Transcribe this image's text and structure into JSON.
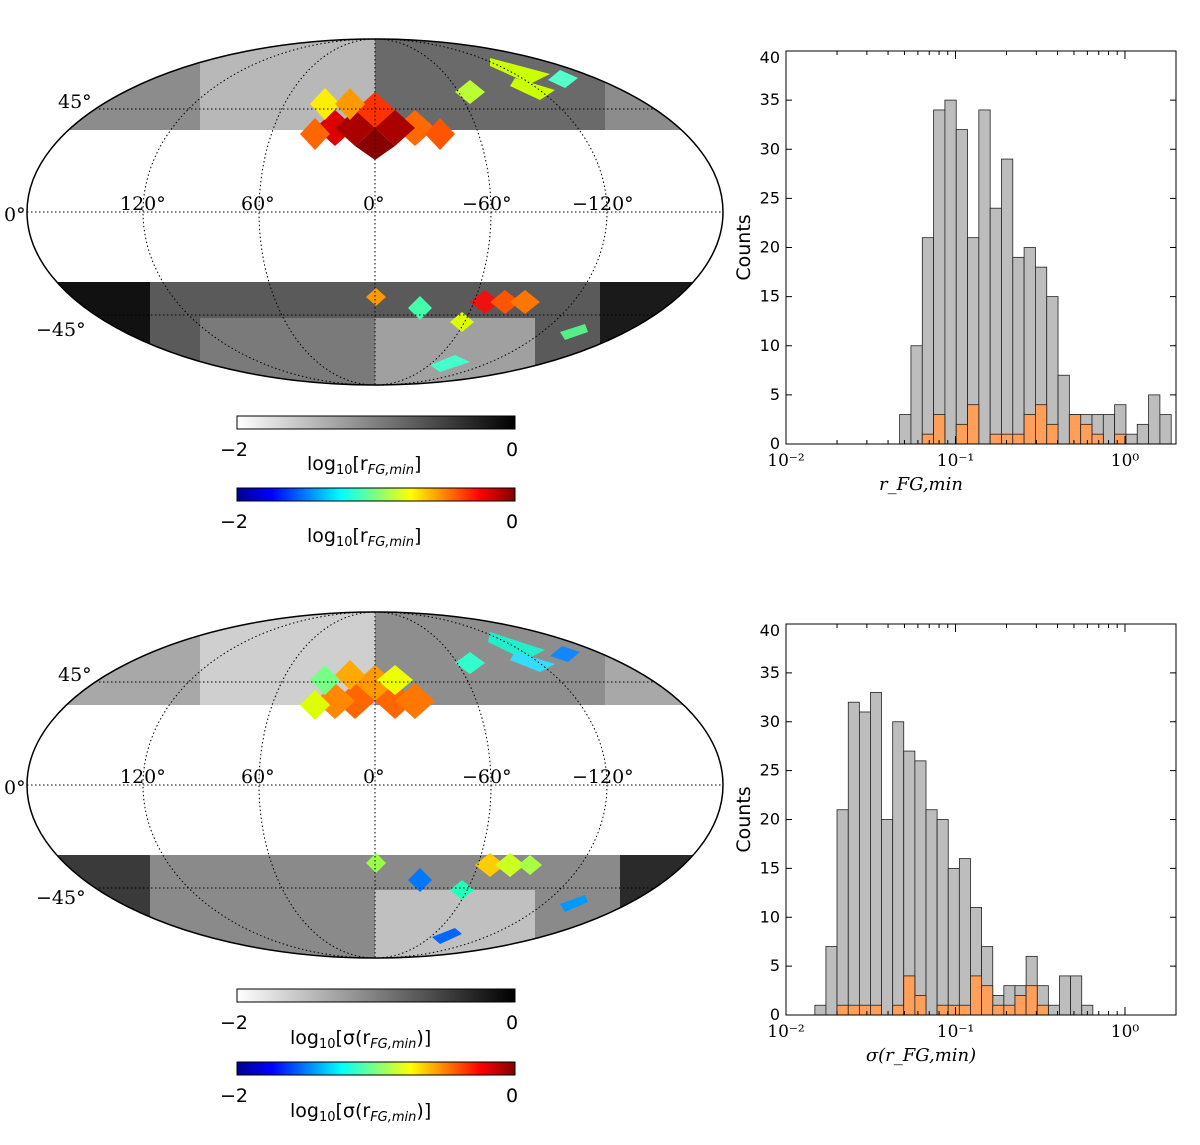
{
  "maps": [
    {
      "id": "map-top",
      "lat_labels": [
        "45°",
        "0°",
        "−45°"
      ],
      "lon_labels": [
        "120°",
        "60°",
        "0°",
        "−60°",
        "−120°"
      ],
      "colorbar_gray": {
        "min": "−2",
        "max": "0",
        "label_prefix": "log",
        "label_sub": "10",
        "label_body": "[r",
        "label_italic_sub": "FG,min",
        "label_close": "]"
      },
      "colorbar_jet": {
        "min": "−2",
        "max": "0",
        "label_prefix": "log",
        "label_sub": "10",
        "label_body": "[r",
        "label_italic_sub": "FG,min",
        "label_close": "]"
      }
    },
    {
      "id": "map-bottom",
      "lat_labels": [
        "45°",
        "0°",
        "−45°"
      ],
      "lon_labels": [
        "120°",
        "60°",
        "0°",
        "−60°",
        "−120°"
      ],
      "colorbar_gray": {
        "min": "−2",
        "max": "0",
        "label_prefix": "log",
        "label_sub": "10",
        "label_body": "[σ(r",
        "label_italic_sub": "FG,min",
        "label_close": ")]"
      },
      "colorbar_jet": {
        "min": "−2",
        "max": "0",
        "label_prefix": "log",
        "label_sub": "10",
        "label_body": "[σ(r",
        "label_italic_sub": "FG,min",
        "label_close": ")]"
      }
    }
  ],
  "colors": {
    "gray_bar": "#bdbdbd",
    "orange_bar": "#ff9f5a",
    "edge": "#222222"
  },
  "chart_data": [
    {
      "type": "bar",
      "xscale": "log",
      "xlim": [
        0.01,
        2.0
      ],
      "ylim": [
        0,
        40
      ],
      "ylabel": "Counts",
      "xlabel": "r_FG,min",
      "xticks": [
        "10⁻²",
        "10⁻¹",
        "10⁰"
      ],
      "yticks": [
        "0",
        "5",
        "10",
        "15",
        "20",
        "25",
        "30",
        "35",
        "40"
      ],
      "bin_edges": [
        0.0468,
        0.0546,
        0.0637,
        0.0743,
        0.0866,
        0.101,
        0.1178,
        0.1373,
        0.1602,
        0.1868,
        0.2178,
        0.254,
        0.2962,
        0.3454,
        0.4028,
        0.4697,
        0.5478,
        0.6388,
        0.745,
        0.8688,
        1.0132,
        1.1815,
        1.3779,
        1.6069,
        1.8739
      ],
      "series": [
        {
          "values": [
            3,
            10,
            21,
            34,
            35,
            32,
            21,
            34,
            24,
            29,
            19,
            20,
            18,
            15,
            7,
            3,
            3,
            3,
            3,
            4,
            1,
            2,
            5,
            3
          ]
        },
        {
          "values": [
            0,
            0,
            1,
            3,
            0,
            2,
            4,
            0,
            1,
            1,
            1,
            3,
            4,
            2,
            0,
            3,
            2,
            1,
            0,
            1,
            0,
            0,
            0,
            0
          ]
        }
      ]
    },
    {
      "type": "bar",
      "xscale": "log",
      "xlim": [
        0.01,
        2.0
      ],
      "ylim": [
        0,
        40
      ],
      "ylabel": "Counts",
      "xlabel": "σ(r_FG,min)",
      "xticks": [
        "10⁻²",
        "10⁻¹",
        "10⁰"
      ],
      "yticks": [
        "0",
        "5",
        "10",
        "15",
        "20",
        "25",
        "30",
        "35",
        "40"
      ],
      "bin_edges": [
        0.0148,
        0.0172,
        0.02,
        0.0233,
        0.0271,
        0.0315,
        0.0366,
        0.0426,
        0.0495,
        0.0576,
        0.067,
        0.0779,
        0.0906,
        0.1054,
        0.1226,
        0.1426,
        0.1659,
        0.1929,
        0.2244,
        0.261,
        0.3036,
        0.3531,
        0.4107,
        0.4777,
        0.5557,
        0.6463,
        0.7517,
        0.8744
      ],
      "series": [
        {
          "values": [
            1,
            7,
            21,
            32,
            31,
            33,
            20,
            30,
            27,
            26,
            21,
            20,
            15,
            16,
            11,
            7,
            2,
            3,
            3,
            6,
            3,
            1,
            4,
            4,
            1,
            0,
            0
          ]
        },
        {
          "values": [
            0,
            0,
            1,
            1,
            1,
            1,
            0,
            1,
            4,
            2,
            0,
            1,
            1,
            1,
            4,
            3,
            1,
            1,
            2,
            3,
            1,
            0,
            0,
            0,
            0,
            0,
            0
          ]
        }
      ]
    }
  ]
}
